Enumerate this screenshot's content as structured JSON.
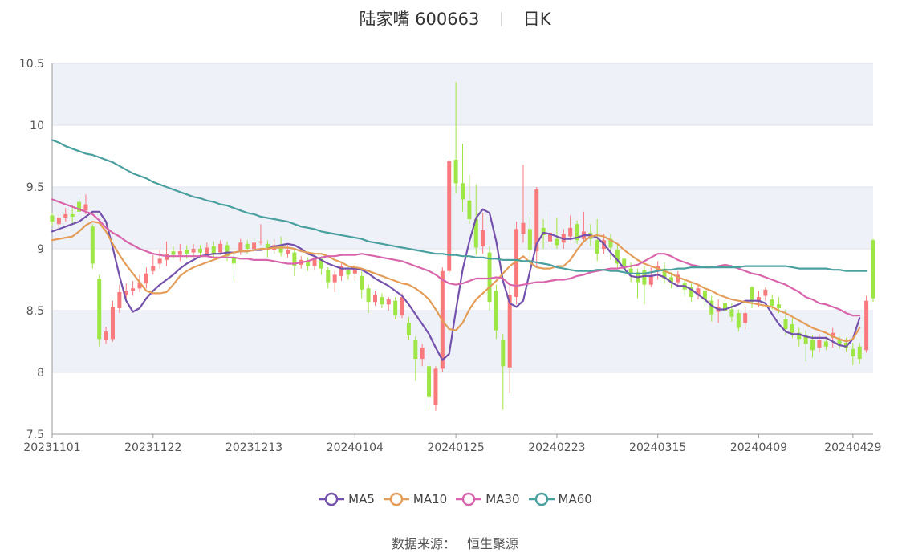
{
  "header": {
    "stock_name": "陆家嘴",
    "stock_code": "600663",
    "period": "日K"
  },
  "source": {
    "label": "数据来源：",
    "value": "恒生聚源"
  },
  "colors": {
    "up": "#f87a7d",
    "down": "#9ee546",
    "ma5": "#7451ab",
    "ma10": "#e39d58",
    "ma30": "#d865ab",
    "ma60": "#4a9f9f",
    "band": "#eff1f8",
    "grid": "#dfe2ee",
    "axis": "#9a9a9a"
  },
  "chart_data": {
    "type": "candlestick",
    "ylim": [
      7.5,
      10.5
    ],
    "yticks": [
      "7.5",
      "8",
      "8.5",
      "9",
      "9.5",
      "10",
      "10.5"
    ],
    "xticks": [
      "20231101",
      "20231122",
      "20231213",
      "20240104",
      "20240125",
      "20240223",
      "20240315",
      "20240409",
      "20240429"
    ],
    "xtick_index": [
      0,
      15,
      30,
      45,
      60,
      75,
      90,
      105,
      119
    ],
    "candles": [
      [
        9.27,
        9.22,
        9.29,
        9.19
      ],
      [
        9.2,
        9.25,
        9.28,
        9.17
      ],
      [
        9.25,
        9.28,
        9.33,
        9.22
      ],
      [
        9.28,
        9.26,
        9.35,
        9.2
      ],
      [
        9.38,
        9.3,
        9.42,
        9.27
      ],
      [
        9.31,
        9.36,
        9.44,
        9.28
      ],
      [
        9.18,
        8.88,
        9.2,
        8.84
      ],
      [
        8.76,
        8.27,
        8.79,
        8.21
      ],
      [
        8.26,
        8.33,
        8.37,
        8.23
      ],
      [
        8.27,
        8.53,
        8.58,
        8.25
      ],
      [
        8.52,
        8.65,
        8.71,
        8.48
      ],
      [
        8.63,
        8.66,
        8.72,
        8.58
      ],
      [
        8.66,
        8.68,
        8.74,
        8.62
      ],
      [
        8.68,
        8.73,
        8.79,
        8.65
      ],
      [
        8.72,
        8.8,
        8.85,
        8.68
      ],
      [
        8.82,
        8.86,
        8.95,
        8.79
      ],
      [
        8.88,
        8.92,
        8.99,
        8.84
      ],
      [
        8.91,
        8.96,
        9.06,
        8.86
      ],
      [
        8.98,
        8.95,
        9.02,
        8.92
      ],
      [
        8.95,
        8.98,
        9.04,
        8.9
      ],
      [
        8.99,
        8.96,
        9.03,
        8.92
      ],
      [
        8.97,
        9.0,
        9.04,
        8.93
      ],
      [
        9.0,
        8.97,
        9.03,
        8.93
      ],
      [
        8.96,
        9.01,
        9.05,
        8.94
      ],
      [
        9.02,
        8.96,
        9.06,
        8.92
      ],
      [
        8.97,
        9.04,
        9.07,
        8.95
      ],
      [
        9.03,
        8.94,
        9.06,
        8.9
      ],
      [
        8.93,
        8.88,
        8.97,
        8.74
      ],
      [
        8.98,
        9.05,
        9.08,
        8.95
      ],
      [
        9.04,
        9.0,
        9.07,
        8.96
      ],
      [
        9.0,
        9.05,
        9.09,
        8.98
      ],
      [
        9.05,
        9.06,
        9.2,
        9.03
      ],
      [
        9.04,
        8.99,
        9.07,
        8.93
      ],
      [
        8.99,
        9.03,
        9.08,
        8.96
      ],
      [
        9.02,
        8.97,
        9.1,
        8.94
      ],
      [
        8.96,
        8.99,
        9.03,
        8.93
      ],
      [
        8.97,
        8.86,
        8.99,
        8.78
      ],
      [
        8.87,
        8.91,
        8.94,
        8.84
      ],
      [
        8.9,
        8.86,
        8.93,
        8.82
      ],
      [
        8.86,
        8.93,
        8.95,
        8.83
      ],
      [
        8.92,
        8.84,
        8.94,
        8.79
      ],
      [
        8.83,
        8.73,
        8.85,
        8.68
      ],
      [
        8.73,
        8.79,
        8.82,
        8.65
      ],
      [
        8.78,
        8.86,
        8.88,
        8.74
      ],
      [
        8.83,
        8.79,
        8.86,
        8.75
      ],
      [
        8.8,
        8.84,
        8.87,
        8.74
      ],
      [
        8.78,
        8.67,
        8.82,
        8.6
      ],
      [
        8.68,
        8.57,
        8.71,
        8.48
      ],
      [
        8.57,
        8.63,
        8.66,
        8.54
      ],
      [
        8.61,
        8.55,
        8.64,
        8.52
      ],
      [
        8.55,
        8.59,
        8.61,
        8.5
      ],
      [
        8.58,
        8.46,
        8.61,
        8.43
      ],
      [
        8.46,
        8.61,
        8.64,
        8.44
      ],
      [
        8.4,
        8.3,
        8.45,
        8.26
      ],
      [
        8.26,
        8.11,
        8.29,
        7.93
      ],
      [
        8.11,
        8.2,
        8.23,
        8.05
      ],
      [
        8.05,
        7.8,
        8.08,
        7.7
      ],
      [
        7.74,
        8.03,
        8.05,
        7.69
      ],
      [
        8.03,
        8.82,
        8.85,
        8.0
      ],
      [
        8.82,
        9.71,
        9.72,
        8.8
      ],
      [
        9.72,
        9.53,
        10.35,
        9.45
      ],
      [
        9.53,
        9.4,
        9.85,
        9.3
      ],
      [
        9.39,
        9.24,
        9.6,
        9.2
      ],
      [
        9.24,
        9.01,
        9.52,
        8.95
      ],
      [
        9.02,
        9.15,
        9.29,
        8.96
      ],
      [
        8.97,
        8.57,
        9.02,
        8.5
      ],
      [
        8.66,
        8.34,
        8.71,
        8.27
      ],
      [
        8.26,
        8.05,
        8.31,
        7.7
      ],
      [
        8.04,
        8.63,
        8.7,
        7.83
      ],
      [
        8.61,
        9.16,
        9.22,
        8.55
      ],
      [
        9.12,
        9.21,
        9.68,
        9.05
      ],
      [
        9.16,
        8.99,
        9.26,
        8.88
      ],
      [
        8.98,
        9.48,
        9.5,
        8.85
      ],
      [
        9.17,
        9.11,
        9.24,
        9.0
      ],
      [
        9.06,
        9.13,
        9.3,
        9.01
      ],
      [
        9.08,
        9.03,
        9.25,
        9.0
      ],
      [
        9.05,
        9.12,
        9.16,
        9.0
      ],
      [
        9.1,
        9.17,
        9.27,
        9.07
      ],
      [
        9.2,
        9.07,
        9.23,
        9.04
      ],
      [
        9.08,
        9.14,
        9.3,
        9.05
      ],
      [
        9.13,
        9.08,
        9.2,
        9.02
      ],
      [
        9.07,
        8.96,
        9.24,
        8.9
      ],
      [
        9.0,
        9.07,
        9.12,
        8.96
      ],
      [
        9.08,
        9.01,
        9.12,
        8.91
      ],
      [
        8.99,
        8.88,
        9.03,
        8.85
      ],
      [
        8.92,
        8.84,
        8.93,
        8.78
      ],
      [
        8.84,
        8.8,
        8.89,
        8.73
      ],
      [
        8.81,
        8.73,
        8.84,
        8.6
      ],
      [
        8.83,
        8.71,
        8.86,
        8.55
      ],
      [
        8.71,
        8.78,
        8.85,
        8.69
      ],
      [
        8.83,
        8.86,
        8.9,
        8.75
      ],
      [
        8.84,
        8.76,
        8.89,
        8.72
      ],
      [
        8.77,
        8.73,
        8.81,
        8.68
      ],
      [
        8.73,
        8.79,
        8.82,
        8.7
      ],
      [
        8.72,
        8.67,
        8.76,
        8.62
      ],
      [
        8.69,
        8.61,
        8.72,
        8.57
      ],
      [
        8.63,
        8.68,
        8.71,
        8.59
      ],
      [
        8.66,
        8.59,
        8.7,
        8.53
      ],
      [
        8.58,
        8.47,
        8.62,
        8.41
      ],
      [
        8.49,
        8.53,
        8.59,
        8.4
      ],
      [
        8.56,
        8.5,
        8.59,
        8.47
      ],
      [
        8.51,
        8.45,
        8.56,
        8.41
      ],
      [
        8.48,
        8.36,
        8.51,
        8.33
      ],
      [
        8.4,
        8.48,
        8.53,
        8.35
      ],
      [
        8.69,
        8.57,
        8.7,
        8.52
      ],
      [
        8.57,
        8.61,
        8.66,
        8.53
      ],
      [
        8.62,
        8.67,
        8.69,
        8.58
      ],
      [
        8.59,
        8.54,
        8.63,
        8.51
      ],
      [
        8.55,
        8.52,
        8.61,
        8.48
      ],
      [
        8.43,
        8.35,
        8.51,
        8.3
      ],
      [
        8.39,
        8.32,
        8.44,
        8.28
      ],
      [
        8.32,
        8.27,
        8.36,
        8.21
      ],
      [
        8.3,
        8.23,
        8.34,
        8.09
      ],
      [
        8.26,
        8.18,
        8.3,
        8.12
      ],
      [
        8.2,
        8.26,
        8.31,
        8.16
      ],
      [
        8.25,
        8.21,
        8.29,
        8.18
      ],
      [
        8.28,
        8.32,
        8.36,
        8.2
      ],
      [
        8.26,
        8.22,
        8.29,
        8.19
      ],
      [
        8.24,
        8.2,
        8.28,
        8.17
      ],
      [
        8.19,
        8.13,
        8.24,
        8.06
      ],
      [
        8.21,
        8.11,
        8.24,
        8.07
      ],
      [
        8.18,
        8.58,
        8.62,
        8.16
      ],
      [
        9.07,
        8.6,
        9.08,
        8.57
      ]
    ],
    "series": [
      {
        "name": "MA5",
        "values": [
          9.14,
          9.16,
          9.18,
          9.2,
          9.22,
          9.26,
          9.3,
          9.3,
          9.22,
          9.01,
          8.78,
          8.58,
          8.49,
          8.52,
          8.6,
          8.66,
          8.71,
          8.75,
          8.79,
          8.84,
          8.88,
          8.91,
          8.94,
          8.95,
          8.96,
          8.96,
          8.97,
          8.97,
          8.98,
          8.98,
          8.99,
          8.99,
          9.0,
          9.02,
          9.03,
          9.04,
          9.03,
          9.0,
          8.96,
          8.94,
          8.91,
          8.88,
          8.86,
          8.84,
          8.84,
          8.84,
          8.83,
          8.8,
          8.76,
          8.73,
          8.7,
          8.66,
          8.62,
          8.55,
          8.47,
          8.39,
          8.31,
          8.2,
          8.1,
          8.15,
          8.5,
          8.83,
          9.06,
          9.25,
          9.32,
          9.29,
          9.06,
          8.74,
          8.56,
          8.53,
          8.58,
          8.82,
          9.04,
          9.13,
          9.12,
          9.1,
          9.08,
          9.08,
          9.09,
          9.11,
          9.11,
          9.09,
          9.04,
          8.97,
          8.91,
          8.84,
          8.78,
          8.77,
          8.78,
          8.78,
          8.79,
          8.77,
          8.73,
          8.7,
          8.7,
          8.67,
          8.63,
          8.59,
          8.54,
          8.51,
          8.51,
          8.53,
          8.55,
          8.58,
          8.58,
          8.58,
          8.56,
          8.47,
          8.39,
          8.33,
          8.31,
          8.31,
          8.29,
          8.28,
          8.28,
          8.28,
          8.25,
          8.22,
          8.21,
          8.27,
          8.44
        ]
      },
      {
        "name": "MA10",
        "values": [
          9.07,
          9.08,
          9.09,
          9.1,
          9.14,
          9.19,
          9.22,
          9.21,
          9.14,
          9.04,
          8.95,
          8.87,
          8.8,
          8.73,
          8.66,
          8.64,
          8.64,
          8.65,
          8.71,
          8.78,
          8.82,
          8.85,
          8.87,
          8.89,
          8.91,
          8.93,
          8.95,
          8.97,
          8.98,
          8.98,
          8.99,
          9.0,
          9.0,
          9.01,
          9.01,
          9.01,
          9.0,
          8.98,
          8.97,
          8.96,
          8.96,
          8.94,
          8.91,
          8.89,
          8.86,
          8.85,
          8.84,
          8.82,
          8.8,
          8.78,
          8.76,
          8.74,
          8.72,
          8.71,
          8.68,
          8.64,
          8.59,
          8.51,
          8.42,
          8.35,
          8.34,
          8.4,
          8.51,
          8.59,
          8.64,
          8.69,
          8.74,
          8.8,
          8.86,
          8.9,
          8.94,
          8.89,
          8.85,
          8.84,
          8.84,
          8.86,
          8.86,
          8.91,
          8.99,
          9.06,
          9.1,
          9.11,
          9.1,
          9.07,
          9.04,
          8.99,
          8.95,
          8.91,
          8.88,
          8.86,
          8.84,
          8.82,
          8.8,
          8.77,
          8.75,
          8.73,
          8.71,
          8.68,
          8.66,
          8.63,
          8.61,
          8.59,
          8.58,
          8.57,
          8.56,
          8.55,
          8.54,
          8.53,
          8.5,
          8.48,
          8.45,
          8.42,
          8.39,
          8.36,
          8.34,
          8.32,
          8.29,
          8.27,
          8.25,
          8.27,
          8.36
        ]
      },
      {
        "name": "MA30",
        "values": [
          9.4,
          9.38,
          9.36,
          9.34,
          9.32,
          9.3,
          9.28,
          9.23,
          9.17,
          9.13,
          9.1,
          9.06,
          9.03,
          9.0,
          8.98,
          8.96,
          8.95,
          8.94,
          8.94,
          8.94,
          8.94,
          8.94,
          8.94,
          8.94,
          8.93,
          8.93,
          8.93,
          8.93,
          8.92,
          8.92,
          8.91,
          8.91,
          8.91,
          8.9,
          8.89,
          8.88,
          8.88,
          8.89,
          8.9,
          8.92,
          8.93,
          8.94,
          8.94,
          8.95,
          8.95,
          8.95,
          8.96,
          8.95,
          8.94,
          8.93,
          8.92,
          8.91,
          8.9,
          8.88,
          8.86,
          8.84,
          8.82,
          8.79,
          8.75,
          8.72,
          8.71,
          8.72,
          8.74,
          8.76,
          8.76,
          8.76,
          8.77,
          8.76,
          8.71,
          8.7,
          8.71,
          8.72,
          8.73,
          8.73,
          8.74,
          8.75,
          8.75,
          8.76,
          8.78,
          8.79,
          8.81,
          8.82,
          8.83,
          8.84,
          8.84,
          8.85,
          8.86,
          8.87,
          8.9,
          8.93,
          8.96,
          8.96,
          8.94,
          8.91,
          8.89,
          8.87,
          8.86,
          8.85,
          8.85,
          8.86,
          8.87,
          8.86,
          8.84,
          8.82,
          8.8,
          8.79,
          8.77,
          8.75,
          8.73,
          8.71,
          8.68,
          8.65,
          8.61,
          8.59,
          8.56,
          8.55,
          8.53,
          8.51,
          8.48,
          8.46,
          8.46
        ]
      },
      {
        "name": "MA60",
        "values": [
          9.88,
          9.86,
          9.83,
          9.81,
          9.79,
          9.77,
          9.76,
          9.74,
          9.72,
          9.7,
          9.67,
          9.64,
          9.61,
          9.59,
          9.57,
          9.54,
          9.52,
          9.5,
          9.48,
          9.46,
          9.44,
          9.42,
          9.41,
          9.39,
          9.38,
          9.36,
          9.35,
          9.33,
          9.31,
          9.29,
          9.28,
          9.26,
          9.25,
          9.24,
          9.23,
          9.22,
          9.2,
          9.18,
          9.17,
          9.16,
          9.14,
          9.13,
          9.12,
          9.11,
          9.1,
          9.09,
          9.08,
          9.06,
          9.05,
          9.04,
          9.03,
          9.02,
          9.01,
          9.0,
          8.99,
          8.98,
          8.97,
          8.96,
          8.96,
          8.95,
          8.95,
          8.94,
          8.94,
          8.93,
          8.93,
          8.92,
          8.92,
          8.91,
          8.91,
          8.91,
          8.9,
          8.9,
          8.89,
          8.88,
          8.87,
          8.85,
          8.84,
          8.83,
          8.82,
          8.82,
          8.82,
          8.83,
          8.83,
          8.82,
          8.82,
          8.81,
          8.8,
          8.8,
          8.8,
          8.81,
          8.82,
          8.83,
          8.83,
          8.84,
          8.84,
          8.85,
          8.85,
          8.85,
          8.85,
          8.85,
          8.85,
          8.85,
          8.85,
          8.86,
          8.86,
          8.86,
          8.86,
          8.86,
          8.86,
          8.86,
          8.85,
          8.84,
          8.84,
          8.84,
          8.84,
          8.84,
          8.83,
          8.83,
          8.82,
          8.82,
          8.82,
          8.82
        ]
      }
    ],
    "legend": [
      "MA5",
      "MA10",
      "MA30",
      "MA60"
    ],
    "legend_position": "bottom-center",
    "grid": true
  }
}
